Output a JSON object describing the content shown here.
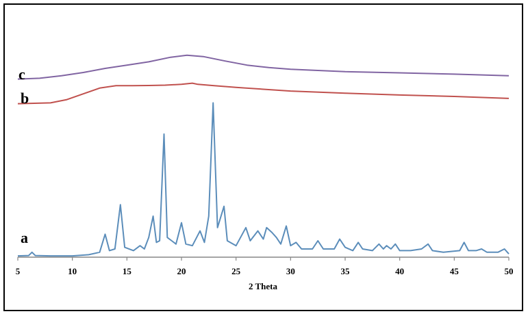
{
  "chart_data": {
    "type": "line",
    "xlabel": "2 Theta",
    "ylabel": "",
    "xlim": [
      5,
      50
    ],
    "xticks": [
      "5",
      "10",
      "15",
      "20",
      "25",
      "30",
      "35",
      "40",
      "45",
      "50"
    ],
    "grid": false,
    "legend": "none",
    "series": [
      {
        "name": "a",
        "color": "#5B8DBA",
        "points": [
          [
            5.0,
            0.8
          ],
          [
            6.0,
            1.0
          ],
          [
            6.3,
            3.0
          ],
          [
            6.6,
            1.0
          ],
          [
            8.0,
            0.8
          ],
          [
            10.0,
            0.8
          ],
          [
            11.5,
            1.5
          ],
          [
            12.5,
            3.0
          ],
          [
            13.0,
            14.0
          ],
          [
            13.4,
            4.0
          ],
          [
            13.9,
            5.0
          ],
          [
            14.4,
            32.0
          ],
          [
            14.8,
            6.0
          ],
          [
            15.6,
            4.0
          ],
          [
            16.2,
            7.0
          ],
          [
            16.6,
            5.0
          ],
          [
            17.0,
            12.0
          ],
          [
            17.4,
            25.0
          ],
          [
            17.7,
            9.0
          ],
          [
            18.0,
            10.0
          ],
          [
            18.4,
            75.0
          ],
          [
            18.7,
            12.0
          ],
          [
            19.1,
            10.0
          ],
          [
            19.5,
            8.0
          ],
          [
            20.0,
            21.0
          ],
          [
            20.4,
            8.0
          ],
          [
            21.0,
            7.0
          ],
          [
            21.7,
            16.0
          ],
          [
            22.1,
            9.0
          ],
          [
            22.5,
            25.0
          ],
          [
            22.9,
            94.0
          ],
          [
            23.3,
            18.0
          ],
          [
            23.9,
            31.0
          ],
          [
            24.2,
            10.0
          ],
          [
            25.0,
            7.0
          ],
          [
            25.9,
            18.0
          ],
          [
            26.3,
            10.0
          ],
          [
            27.0,
            16.0
          ],
          [
            27.5,
            11.0
          ],
          [
            27.8,
            18.0
          ],
          [
            28.3,
            15.0
          ],
          [
            28.7,
            12.0
          ],
          [
            29.1,
            8.0
          ],
          [
            29.6,
            19.0
          ],
          [
            30.0,
            7.0
          ],
          [
            30.5,
            9.0
          ],
          [
            31.0,
            5.0
          ],
          [
            32.0,
            5.0
          ],
          [
            32.5,
            10.0
          ],
          [
            33.0,
            5.0
          ],
          [
            34.0,
            5.0
          ],
          [
            34.5,
            11.0
          ],
          [
            35.0,
            6.0
          ],
          [
            35.7,
            4.0
          ],
          [
            36.2,
            9.0
          ],
          [
            36.6,
            5.0
          ],
          [
            37.5,
            4.0
          ],
          [
            38.1,
            8.0
          ],
          [
            38.5,
            5.0
          ],
          [
            38.8,
            7.0
          ],
          [
            39.2,
            5.0
          ],
          [
            39.6,
            8.0
          ],
          [
            40.0,
            4.0
          ],
          [
            41.0,
            4.0
          ],
          [
            42.0,
            5.0
          ],
          [
            42.6,
            8.0
          ],
          [
            43.0,
            4.0
          ],
          [
            44.0,
            3.0
          ],
          [
            45.5,
            4.0
          ],
          [
            45.9,
            9.0
          ],
          [
            46.3,
            4.0
          ],
          [
            47.0,
            4.0
          ],
          [
            47.5,
            5.0
          ],
          [
            48.0,
            3.0
          ],
          [
            49.0,
            3.0
          ],
          [
            49.6,
            5.0
          ],
          [
            50.0,
            2.0
          ]
        ]
      },
      {
        "name": "b",
        "color": "#C0504D",
        "points": [
          [
            5.0,
            93.5
          ],
          [
            8.0,
            94.0
          ],
          [
            9.5,
            96.0
          ],
          [
            11.0,
            99.5
          ],
          [
            12.5,
            103.0
          ],
          [
            14.0,
            104.5
          ],
          [
            15.5,
            104.5
          ],
          [
            17.0,
            104.6
          ],
          [
            18.5,
            104.8
          ],
          [
            20.0,
            105.3
          ],
          [
            21.0,
            106.0
          ],
          [
            21.5,
            105.3
          ],
          [
            23.0,
            104.5
          ],
          [
            25.0,
            103.4
          ],
          [
            30.0,
            101.2
          ],
          [
            35.0,
            99.9
          ],
          [
            40.0,
            98.8
          ],
          [
            45.0,
            97.9
          ],
          [
            50.0,
            96.7
          ]
        ]
      },
      {
        "name": "c",
        "color": "#8064A2",
        "points": [
          [
            5.0,
            108.5
          ],
          [
            7.0,
            109.0
          ],
          [
            9.0,
            110.5
          ],
          [
            11.0,
            112.5
          ],
          [
            13.0,
            115.0
          ],
          [
            15.0,
            117.0
          ],
          [
            17.0,
            119.0
          ],
          [
            19.0,
            121.8
          ],
          [
            20.5,
            123.0
          ],
          [
            22.0,
            122.2
          ],
          [
            24.0,
            119.5
          ],
          [
            26.0,
            117.0
          ],
          [
            28.0,
            115.5
          ],
          [
            30.0,
            114.5
          ],
          [
            35.0,
            113.0
          ],
          [
            40.0,
            112.3
          ],
          [
            45.0,
            111.5
          ],
          [
            50.0,
            110.5
          ]
        ]
      }
    ]
  }
}
